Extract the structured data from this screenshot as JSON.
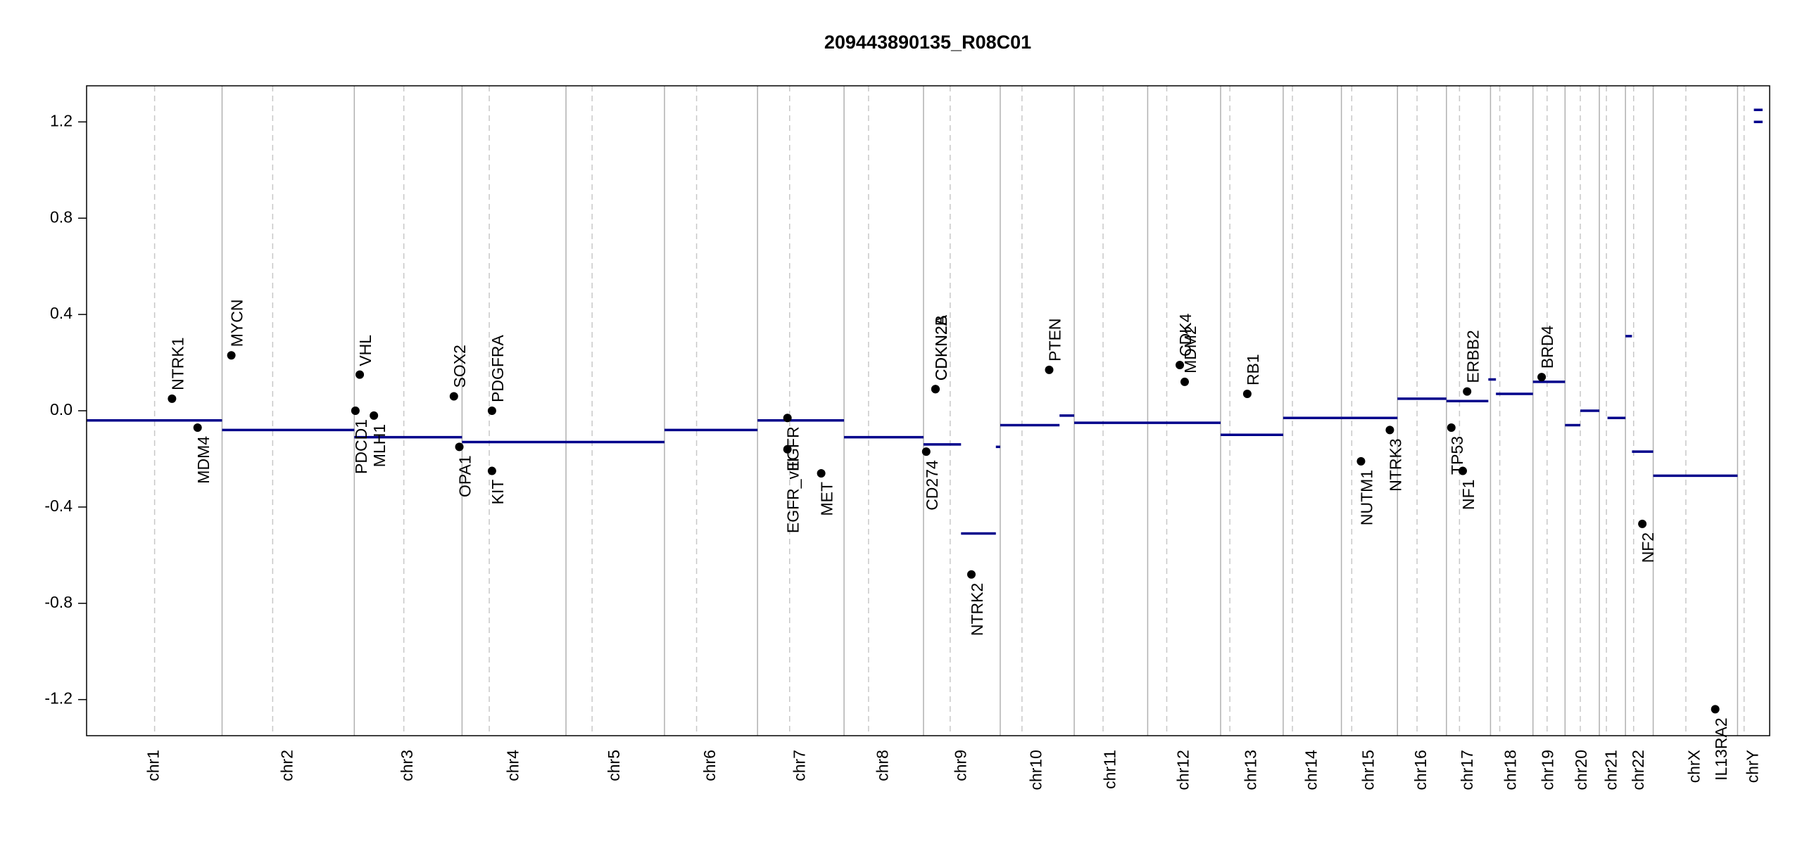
{
  "chart_data": {
    "type": "scatter",
    "title": "209443890135_R08C01",
    "xlim": [
      0,
      3093
    ],
    "ylim": [
      -1.35,
      1.35
    ],
    "yticks": [
      -1.2,
      -0.8,
      -0.4,
      {
        "value": 0,
        "label": "0.0"
      },
      0.4,
      0.8,
      1.2
    ],
    "segment_color": "#00008b",
    "gene_color": "#000000",
    "chromosomes": [
      {
        "name": "chr1",
        "end": 249,
        "centromere": 125
      },
      {
        "name": "chr2",
        "end": 492,
        "centromere": 342
      },
      {
        "name": "chr3",
        "end": 690,
        "centromere": 583
      },
      {
        "name": "chr4",
        "end": 881,
        "centromere": 740
      },
      {
        "name": "chr5",
        "end": 1062,
        "centromere": 929
      },
      {
        "name": "chr6",
        "end": 1233,
        "centromere": 1121
      },
      {
        "name": "chr7",
        "end": 1392,
        "centromere": 1292
      },
      {
        "name": "chr8",
        "end": 1538,
        "centromere": 1437
      },
      {
        "name": "chr9",
        "end": 1679,
        "centromere": 1587
      },
      {
        "name": "chr10",
        "end": 1815,
        "centromere": 1719
      },
      {
        "name": "chr11",
        "end": 1950,
        "centromere": 1868
      },
      {
        "name": "chr12",
        "end": 2084,
        "centromere": 1985
      },
      {
        "name": "chr13",
        "end": 2199,
        "centromere": 2101
      },
      {
        "name": "chr14",
        "end": 2306,
        "centromere": 2216
      },
      {
        "name": "chr15",
        "end": 2409,
        "centromere": 2325
      },
      {
        "name": "chr16",
        "end": 2499,
        "centromere": 2445
      },
      {
        "name": "chr17",
        "end": 2580,
        "centromere": 2523
      },
      {
        "name": "chr18",
        "end": 2658,
        "centromere": 2597
      },
      {
        "name": "chr19",
        "end": 2717,
        "centromere": 2684
      },
      {
        "name": "chr20",
        "end": 2780,
        "centromere": 2745
      },
      {
        "name": "chr21",
        "end": 2828,
        "centromere": 2793
      },
      {
        "name": "chr22",
        "end": 2879,
        "centromere": 2843
      },
      {
        "name": "chrX",
        "end": 3034,
        "centromere": 2939
      },
      {
        "name": "chrY",
        "end": 3093,
        "centromere": 3046
      }
    ],
    "segments": [
      {
        "start": 0,
        "end": 249,
        "value": -0.04
      },
      {
        "start": 249,
        "end": 492,
        "value": -0.08
      },
      {
        "start": 492,
        "end": 690,
        "value": -0.11
      },
      {
        "start": 690,
        "end": 881,
        "value": -0.13
      },
      {
        "start": 881,
        "end": 1062,
        "value": -0.13
      },
      {
        "start": 1062,
        "end": 1233,
        "value": -0.08
      },
      {
        "start": 1233,
        "end": 1392,
        "value": -0.04
      },
      {
        "start": 1392,
        "end": 1538,
        "value": -0.11
      },
      {
        "start": 1538,
        "end": 1607,
        "value": -0.14
      },
      {
        "start": 1607,
        "end": 1671,
        "value": -0.51
      },
      {
        "start": 1671,
        "end": 1679,
        "value": -0.15
      },
      {
        "start": 1679,
        "end": 1788,
        "value": -0.06
      },
      {
        "start": 1788,
        "end": 1815,
        "value": -0.02
      },
      {
        "start": 1815,
        "end": 1950,
        "value": -0.05
      },
      {
        "start": 1950,
        "end": 2084,
        "value": -0.05
      },
      {
        "start": 2084,
        "end": 2199,
        "value": -0.1
      },
      {
        "start": 2199,
        "end": 2306,
        "value": -0.03
      },
      {
        "start": 2306,
        "end": 2409,
        "value": -0.03
      },
      {
        "start": 2409,
        "end": 2499,
        "value": 0.05
      },
      {
        "start": 2499,
        "end": 2576,
        "value": 0.04
      },
      {
        "start": 2576,
        "end": 2590,
        "value": 0.13
      },
      {
        "start": 2590,
        "end": 2658,
        "value": 0.07
      },
      {
        "start": 2658,
        "end": 2717,
        "value": 0.12
      },
      {
        "start": 2717,
        "end": 2745,
        "value": -0.06
      },
      {
        "start": 2745,
        "end": 2780,
        "value": 0.0
      },
      {
        "start": 2795,
        "end": 2828,
        "value": -0.03
      },
      {
        "start": 2828,
        "end": 2840,
        "value": 0.31
      },
      {
        "start": 2840,
        "end": 2879,
        "value": -0.17
      },
      {
        "start": 2879,
        "end": 3034,
        "value": -0.27
      },
      {
        "start": 3064,
        "end": 3080,
        "value": 1.2
      },
      {
        "start": 3064,
        "end": 3080,
        "value": 1.25
      }
    ],
    "genes": [
      {
        "name": "NTRK1",
        "x": 157,
        "value": 0.05
      },
      {
        "name": "MDM4",
        "x": 204,
        "value": -0.07
      },
      {
        "name": "MYCN",
        "x": 266,
        "value": 0.23
      },
      {
        "name": "PDCD1",
        "x": 494,
        "value": 0.0
      },
      {
        "name": "VHL",
        "x": 502,
        "value": 0.15
      },
      {
        "name": "MLH1",
        "x": 528,
        "value": -0.02
      },
      {
        "name": "SOX2",
        "x": 675,
        "value": 0.06
      },
      {
        "name": "OPA1",
        "x": 685,
        "value": -0.15
      },
      {
        "name": "KIT",
        "x": 745,
        "value": -0.25
      },
      {
        "name": "PDGFRA",
        "x": 745,
        "value": 0.0
      },
      {
        "name": "EGFR",
        "x": 1288,
        "value": -0.03
      },
      {
        "name": "EGFR_vIII",
        "x": 1288,
        "value": -0.16
      },
      {
        "name": "MET",
        "x": 1350,
        "value": -0.26
      },
      {
        "name": "CD274",
        "x": 1543,
        "value": -0.17
      },
      {
        "name": "CDKN2A",
        "x": 1560,
        "value": 0.09
      },
      {
        "name": "CDKN2B",
        "x": 1560,
        "value": 0.09
      },
      {
        "name": "NTRK2",
        "x": 1626,
        "value": -0.68
      },
      {
        "name": "PTEN",
        "x": 1769,
        "value": 0.17
      },
      {
        "name": "CDK4",
        "x": 2009,
        "value": 0.19
      },
      {
        "name": "MDM2",
        "x": 2018,
        "value": 0.12
      },
      {
        "name": "RB1",
        "x": 2133,
        "value": 0.07
      },
      {
        "name": "NUTM1",
        "x": 2342,
        "value": -0.21
      },
      {
        "name": "NTRK3",
        "x": 2395,
        "value": -0.08
      },
      {
        "name": "TP53",
        "x": 2508,
        "value": -0.07
      },
      {
        "name": "NF1",
        "x": 2529,
        "value": -0.25
      },
      {
        "name": "ERBB2",
        "x": 2537,
        "value": 0.08
      },
      {
        "name": "BRD4",
        "x": 2674,
        "value": 0.14
      },
      {
        "name": "NF2",
        "x": 2859,
        "value": -0.47
      },
      {
        "name": "IL13RA2",
        "x": 2993,
        "value": -1.24
      }
    ]
  }
}
